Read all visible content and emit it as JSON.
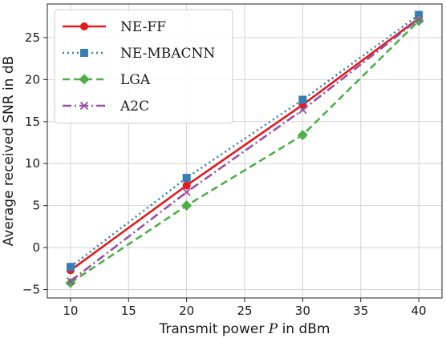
{
  "chart_data": {
    "type": "line",
    "xlabel": "Transmit power",
    "xlabel_symbol": "P",
    "xlabel_unit": "in dBm",
    "ylabel": "Average received SNR in dB",
    "x": [
      10,
      20,
      30,
      40
    ],
    "xlim": [
      8,
      42
    ],
    "ylim": [
      -6,
      29
    ],
    "xticks": [
      10,
      15,
      20,
      25,
      30,
      35,
      40
    ],
    "yticks": [
      -5,
      0,
      5,
      10,
      15,
      20,
      25
    ],
    "grid": true,
    "legend_position": "top-left",
    "series": [
      {
        "name": "NE-FF",
        "values": [
          -2.7,
          7.4,
          17.0,
          27.3
        ],
        "color": "#e41a1c",
        "line_style": "solid",
        "marker": "circle"
      },
      {
        "name": "NE-MBACNN",
        "values": [
          -2.3,
          8.3,
          17.6,
          27.7
        ],
        "color": "#377eb8",
        "line_style": "dotted",
        "marker": "square"
      },
      {
        "name": "LGA",
        "values": [
          -4.2,
          5.0,
          13.4,
          27.0
        ],
        "color": "#4daf4a",
        "line_style": "dashed",
        "marker": "diamond"
      },
      {
        "name": "A2C",
        "values": [
          -4.0,
          6.6,
          16.4,
          27.2
        ],
        "color": "#984ea3",
        "line_style": "dashdot",
        "marker": "x"
      }
    ]
  }
}
